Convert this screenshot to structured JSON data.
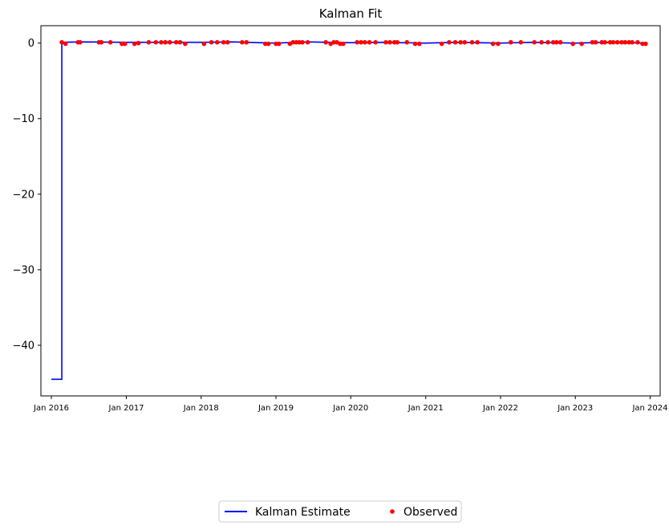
{
  "chart_data": {
    "type": "line",
    "title": "Kalman Fit",
    "xlabel": "",
    "ylabel": "",
    "ylim": [
      -46.7,
      2.3
    ],
    "xlim": [
      "2015-11-11",
      "2024-02-19"
    ],
    "x_ticks": [
      "Jan 2016",
      "Jan 2017",
      "Jan 2018",
      "Jan 2019",
      "Jan 2020",
      "Jan 2021",
      "Jan 2022",
      "Jan 2023",
      "Jan 2024"
    ],
    "x_tick_dates": [
      "2016-01-01",
      "2017-01-01",
      "2018-01-01",
      "2019-01-01",
      "2020-01-01",
      "2021-01-01",
      "2022-01-01",
      "2023-01-01",
      "2024-01-01"
    ],
    "y_ticks": [
      0,
      -10,
      -20,
      -30,
      -40
    ],
    "y_tick_labels": [
      "0",
      "−10",
      "−20",
      "−30",
      "−40"
    ],
    "grid": false,
    "legend_position": "bottom-center",
    "series": [
      {
        "name": "Kalman Estimate",
        "kind": "line",
        "color": "#0000ff",
        "points": [
          [
            "2016-01-01",
            -44.5
          ],
          [
            "2016-02-21",
            -44.5
          ],
          [
            "2016-02-21",
            0.1
          ],
          [
            "2016-06-01",
            0.15
          ],
          [
            "2017-01-01",
            0.1
          ],
          [
            "2017-06-01",
            0.1
          ],
          [
            "2018-01-01",
            0.1
          ],
          [
            "2018-06-01",
            0.15
          ],
          [
            "2019-01-01",
            0.0
          ],
          [
            "2019-06-01",
            0.15
          ],
          [
            "2020-01-01",
            0.05
          ],
          [
            "2020-06-01",
            0.1
          ],
          [
            "2021-01-01",
            0.0
          ],
          [
            "2021-06-01",
            0.1
          ],
          [
            "2022-01-01",
            0.0
          ],
          [
            "2022-06-01",
            0.1
          ],
          [
            "2023-01-01",
            0.0
          ],
          [
            "2023-06-01",
            0.1
          ],
          [
            "2023-12-20",
            0.0
          ]
        ]
      },
      {
        "name": "Observed",
        "kind": "scatter",
        "color": "#ff0000",
        "points": [
          [
            "2016-02-21",
            0.1
          ],
          [
            "2016-03-10",
            -0.1
          ],
          [
            "2016-05-10",
            0.1
          ],
          [
            "2016-05-20",
            0.1
          ],
          [
            "2016-08-20",
            0.1
          ],
          [
            "2016-09-01",
            0.1
          ],
          [
            "2016-10-15",
            0.1
          ],
          [
            "2016-12-10",
            -0.1
          ],
          [
            "2016-12-25",
            -0.1
          ],
          [
            "2017-02-10",
            -0.1
          ],
          [
            "2017-03-01",
            0.0
          ],
          [
            "2017-04-20",
            0.1
          ],
          [
            "2017-05-25",
            0.1
          ],
          [
            "2017-06-20",
            0.1
          ],
          [
            "2017-07-10",
            0.1
          ],
          [
            "2017-08-01",
            0.1
          ],
          [
            "2017-09-01",
            0.1
          ],
          [
            "2017-09-20",
            0.1
          ],
          [
            "2017-10-15",
            -0.1
          ],
          [
            "2018-01-15",
            -0.1
          ],
          [
            "2018-02-20",
            0.1
          ],
          [
            "2018-03-20",
            0.1
          ],
          [
            "2018-04-20",
            0.1
          ],
          [
            "2018-05-10",
            0.1
          ],
          [
            "2018-07-20",
            0.1
          ],
          [
            "2018-08-10",
            0.1
          ],
          [
            "2018-11-10",
            -0.1
          ],
          [
            "2018-11-25",
            -0.1
          ],
          [
            "2019-01-01",
            -0.1
          ],
          [
            "2019-01-15",
            -0.1
          ],
          [
            "2019-03-10",
            -0.1
          ],
          [
            "2019-03-25",
            0.1
          ],
          [
            "2019-04-10",
            0.1
          ],
          [
            "2019-04-25",
            0.1
          ],
          [
            "2019-05-10",
            0.1
          ],
          [
            "2019-06-05",
            0.1
          ],
          [
            "2019-09-01",
            0.1
          ],
          [
            "2019-09-25",
            -0.1
          ],
          [
            "2019-10-10",
            0.1
          ],
          [
            "2019-10-25",
            0.1
          ],
          [
            "2019-11-10",
            -0.1
          ],
          [
            "2019-11-25",
            -0.1
          ],
          [
            "2020-02-01",
            0.1
          ],
          [
            "2020-02-20",
            0.1
          ],
          [
            "2020-03-10",
            0.1
          ],
          [
            "2020-04-01",
            0.1
          ],
          [
            "2020-05-01",
            0.1
          ],
          [
            "2020-06-20",
            0.1
          ],
          [
            "2020-07-10",
            0.1
          ],
          [
            "2020-08-01",
            0.1
          ],
          [
            "2020-08-15",
            0.1
          ],
          [
            "2020-10-01",
            0.1
          ],
          [
            "2020-11-10",
            -0.1
          ],
          [
            "2020-12-01",
            -0.1
          ],
          [
            "2021-03-20",
            -0.1
          ],
          [
            "2021-04-25",
            0.1
          ],
          [
            "2021-05-25",
            0.1
          ],
          [
            "2021-06-20",
            0.1
          ],
          [
            "2021-07-10",
            0.1
          ],
          [
            "2021-08-15",
            0.1
          ],
          [
            "2021-09-10",
            0.1
          ],
          [
            "2021-11-25",
            -0.1
          ],
          [
            "2021-12-20",
            -0.1
          ],
          [
            "2022-02-20",
            0.1
          ],
          [
            "2022-04-10",
            0.1
          ],
          [
            "2022-06-15",
            0.1
          ],
          [
            "2022-07-20",
            0.1
          ],
          [
            "2022-08-20",
            0.1
          ],
          [
            "2022-09-15",
            0.1
          ],
          [
            "2022-10-01",
            0.1
          ],
          [
            "2022-10-20",
            0.1
          ],
          [
            "2022-12-20",
            -0.1
          ],
          [
            "2023-02-01",
            -0.1
          ],
          [
            "2023-03-25",
            0.1
          ],
          [
            "2023-04-10",
            0.1
          ],
          [
            "2023-05-10",
            0.1
          ],
          [
            "2023-05-25",
            0.1
          ],
          [
            "2023-06-20",
            0.1
          ],
          [
            "2023-07-05",
            0.1
          ],
          [
            "2023-07-25",
            0.1
          ],
          [
            "2023-08-15",
            0.1
          ],
          [
            "2023-09-01",
            0.1
          ],
          [
            "2023-09-20",
            0.1
          ],
          [
            "2023-10-05",
            0.1
          ],
          [
            "2023-11-01",
            0.1
          ],
          [
            "2023-11-25",
            -0.1
          ],
          [
            "2023-12-10",
            -0.1
          ]
        ]
      }
    ]
  }
}
